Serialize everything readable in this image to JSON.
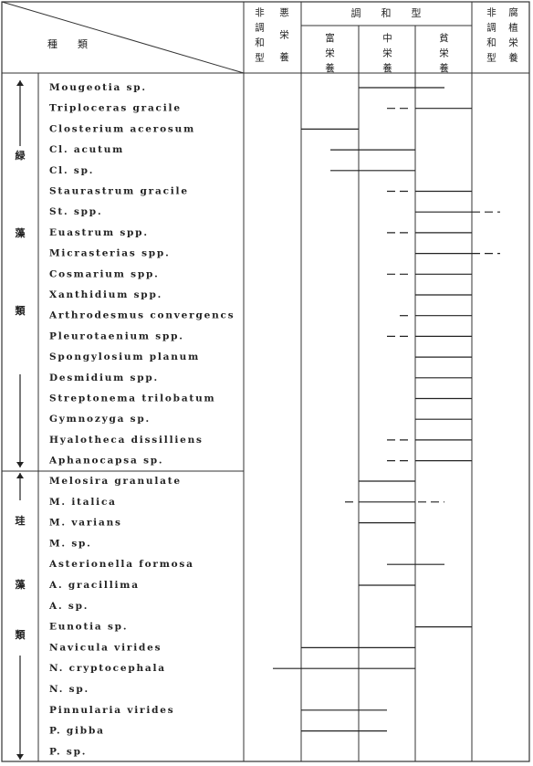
{
  "header": {
    "species": "種　　類",
    "col1_left": "非調和型",
    "col1_right": "悪栄養",
    "harmonic": "調　　和　　型",
    "eutrophic": "富栄養",
    "mesotrophic": "中栄養",
    "oligotrophic": "貧栄養",
    "col5_left": "非調和型",
    "col5_right": "腐植栄養"
  },
  "groups": [
    {
      "label": [
        "緑",
        "藻",
        "類"
      ],
      "species": [
        "Mougeotia sp.",
        "Triploceras gracile",
        "Closterium acerosum",
        "Cl. acutum",
        "Cl. sp.",
        "Staurastrum gracile",
        "St. spp.",
        "Euastrum spp.",
        "Micrasterias spp.",
        "Cosmarium spp.",
        "Xanthidium spp.",
        "Arthrodesmus convergencs",
        "Pleurotaenium spp.",
        "Spongylosium planum",
        "Desmidium spp.",
        "Streptonema trilobatum",
        "Gymnozyga sp.",
        "Hyalotheca dissilliens",
        "Aphanocapsa sp."
      ]
    },
    {
      "label": [
        "珪",
        "藻",
        "類"
      ],
      "species": [
        "Melosira granulate",
        "M. italica",
        "M. varians",
        "M. sp.",
        "Asterionella formosa",
        "A. gracillima",
        "A. sp.",
        "Eunotia sp.",
        "Navicula virides",
        "N. cryptocephala",
        "N. sp.",
        "Pinnularia virides",
        "P. gibba",
        "P. sp."
      ]
    }
  ]
}
